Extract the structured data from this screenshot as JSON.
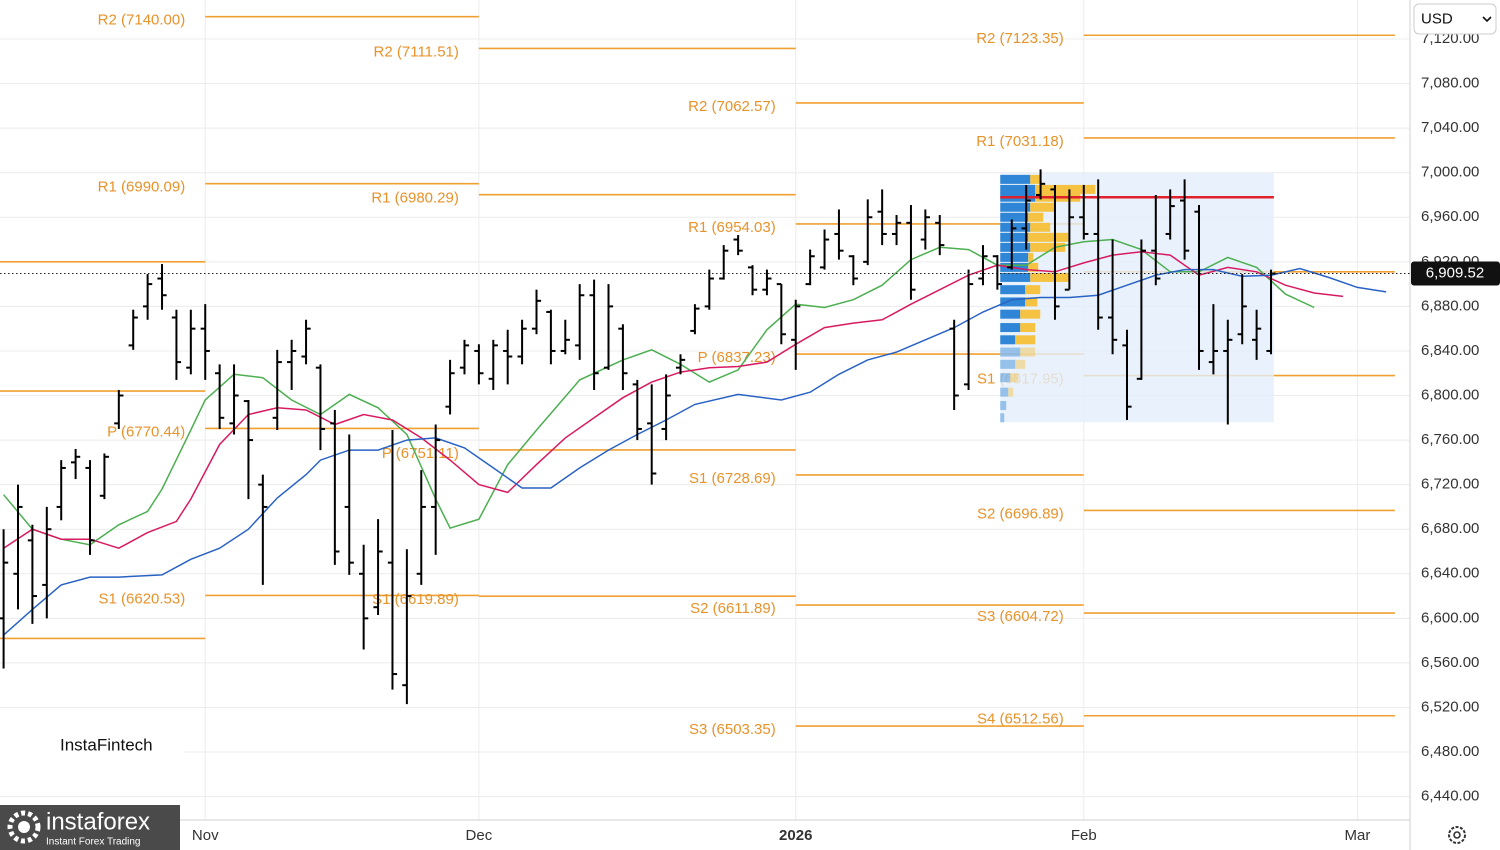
{
  "chart_data": {
    "type": "ohlc",
    "color": "#000000",
    "xlim": [
      -0.25,
      97.65
    ],
    "ylim": [
      6419,
      7155
    ],
    "grid": true,
    "xticks": [
      {
        "value": 14,
        "label": "Nov"
      },
      {
        "value": 33,
        "label": "Dec"
      },
      {
        "value": 55,
        "label": "2026"
      },
      {
        "value": 75,
        "label": "Feb"
      },
      {
        "value": 94,
        "label": "Mar"
      }
    ],
    "yticks": [
      {
        "value": 6440,
        "label": "6,440.00"
      },
      {
        "value": 6480,
        "label": "6,480.00"
      },
      {
        "value": 6520,
        "label": "6,520.00"
      },
      {
        "value": 6560,
        "label": "6,560.00"
      },
      {
        "value": 6600,
        "label": "6,600.00"
      },
      {
        "value": 6640,
        "label": "6,640.00"
      },
      {
        "value": 6680,
        "label": "6,680.00"
      },
      {
        "value": 6720,
        "label": "6,720.00"
      },
      {
        "value": 6760,
        "label": "6,760.00"
      },
      {
        "value": 6800,
        "label": "6,800.00"
      },
      {
        "value": 6840,
        "label": "6,840.00"
      },
      {
        "value": 6880,
        "label": "6,880.00"
      },
      {
        "value": 6920,
        "label": "6,920.00"
      },
      {
        "value": 6960,
        "label": "6,960.00"
      },
      {
        "value": 7000,
        "label": "7,000.00"
      },
      {
        "value": 7040,
        "label": "7,040.00"
      },
      {
        "value": 7080,
        "label": "7,080.00"
      },
      {
        "value": 7120,
        "label": "7,120.00"
      }
    ],
    "x": [
      0,
      1,
      2,
      3,
      4,
      5,
      6,
      7,
      8,
      9,
      10,
      11,
      12,
      13,
      14,
      15,
      16,
      17,
      18,
      19,
      20,
      21,
      22,
      23,
      24,
      25,
      26,
      27,
      28,
      29,
      30,
      31,
      32,
      33,
      34,
      35,
      36,
      37,
      38,
      39,
      40,
      41,
      42,
      43,
      44,
      45,
      46,
      47,
      48,
      49,
      50,
      51,
      52,
      53,
      54,
      55,
      56,
      57,
      58,
      59,
      60,
      61,
      62,
      63,
      64,
      65,
      66,
      67,
      68,
      69,
      70,
      71,
      72,
      73,
      74,
      75,
      76,
      77,
      78,
      79,
      80,
      81,
      82,
      83,
      84,
      85,
      86,
      87,
      88
    ],
    "open": [
      6600,
      6640,
      6670,
      6630,
      6700,
      6740,
      6735,
      6710,
      6775,
      6845,
      6880,
      6905,
      6870,
      6825,
      6860,
      6820,
      6775,
      6795,
      6720,
      6780,
      6830,
      6835,
      6825,
      6775,
      6700,
      6640,
      6610,
      6650,
      6540,
      6640,
      6700,
      6790,
      6825,
      6840,
      6815,
      6840,
      6835,
      6860,
      6875,
      6840,
      6845,
      6890,
      6825,
      6860,
      6810,
      6775,
      6770,
      6825,
      6858,
      6880,
      6905,
      6940,
      6915,
      6895,
      6900,
      6850,
      6900,
      6915,
      6945,
      6925,
      6920,
      6965,
      6945,
      6955,
      6940,
      6955,
      6860,
      6810,
      6905,
      6925,
      6915,
      6950,
      6980,
      6985,
      6895,
      6960,
      6945,
      6870,
      6845,
      6815,
      6930,
      6945,
      6975,
      6965,
      6830,
      6840,
      6855,
      6850,
      6840
    ],
    "high": [
      6680,
      6720,
      6684,
      6700,
      6742,
      6752,
      6742,
      6748,
      6805,
      6877,
      6909,
      6918,
      6877,
      6877,
      6882,
      6828,
      6828,
      6796,
      6729,
      6841,
      6850,
      6868,
      6828,
      6787,
      6765,
      6666,
      6689,
      6769,
      6662,
      6733,
      6774,
      6832,
      6850,
      6846,
      6850,
      6859,
      6868,
      6895,
      6877,
      6868,
      6900,
      6904,
      6900,
      6864,
      6814,
      6810,
      6819,
      6837,
      6882,
      6913,
      6935,
      6944,
      6917,
      6913,
      6900,
      6886,
      6931,
      6949,
      6967,
      6926,
      6976,
      6985,
      6962,
      6971,
      6967,
      6962,
      6868,
      6913,
      6935,
      6926,
      6958,
      6989,
      7003,
      6989,
      6985,
      6989,
      6994,
      6940,
      6859,
      6940,
      6980,
      6985,
      6994,
      6971,
      6882,
      6868,
      6909,
      6877,
      6913
    ],
    "low": [
      6555,
      6608,
      6595,
      6600,
      6688,
      6725,
      6657,
      6707,
      6770,
      6841,
      6868,
      6877,
      6814,
      6819,
      6814,
      6770,
      6765,
      6707,
      6630,
      6769,
      6805,
      6828,
      6751,
      6648,
      6639,
      6572,
      6603,
      6536,
      6523,
      6630,
      6657,
      6783,
      6819,
      6810,
      6805,
      6810,
      6828,
      6855,
      6828,
      6837,
      6832,
      6805,
      6823,
      6805,
      6760,
      6720,
      6760,
      6819,
      6855,
      6877,
      6904,
      6926,
      6890,
      6890,
      6846,
      6823,
      6899,
      6913,
      6922,
      6899,
      6917,
      6935,
      6935,
      6886,
      6931,
      6926,
      6787,
      6805,
      6899,
      6895,
      6913,
      6931,
      6976,
      6868,
      6895,
      6940,
      6859,
      6837,
      6778,
      6814,
      6899,
      6940,
      6922,
      6823,
      6819,
      6774,
      6846,
      6832,
      6837
    ],
    "close": [
      6650,
      6700,
      6620,
      6680,
      6735,
      6745,
      6670,
      6745,
      6800,
      6870,
      6900,
      6890,
      6830,
      6860,
      6840,
      6780,
      6800,
      6760,
      6700,
      6830,
      6840,
      6860,
      6770,
      6660,
      6650,
      6600,
      6660,
      6550,
      6620,
      6700,
      6760,
      6820,
      6845,
      6820,
      6845,
      6835,
      6860,
      6885,
      6840,
      6850,
      6890,
      6820,
      6880,
      6820,
      6770,
      6730,
      6800,
      6832,
      6878,
      6905,
      6930,
      6930,
      6895,
      6905,
      6855,
      6880,
      6925,
      6940,
      6930,
      6905,
      6960,
      6945,
      6955,
      6895,
      6960,
      6935,
      6800,
      6900,
      6925,
      6900,
      6950,
      6975,
      6990,
      6880,
      6960,
      6945,
      6870,
      6850,
      6790,
      6930,
      6905,
      6970,
      6930,
      6840,
      6840,
      6850,
      6880,
      6860,
      6909.52
    ],
    "lines": [
      {
        "color": "#4caf50",
        "x": [
          0,
          2,
          4,
          6,
          8,
          10,
          11,
          13,
          14,
          16,
          18,
          20,
          22,
          24,
          26,
          28,
          30,
          31,
          33,
          35,
          37,
          40,
          43,
          45,
          47,
          49,
          51,
          53,
          55,
          57,
          59,
          61,
          63,
          65,
          67,
          69,
          71,
          73,
          75,
          77,
          79,
          81,
          83,
          85,
          87,
          89,
          91
        ],
        "values": [
          6711,
          6680,
          6671,
          6666,
          6684,
          6696,
          6716,
          6769,
          6796,
          6819,
          6816,
          6796,
          6783,
          6801,
          6789,
          6765,
          6707,
          6681,
          6689,
          6738,
          6769,
          6814,
          6832,
          6841,
          6828,
          6812,
          6823,
          6859,
          6882,
          6879,
          6886,
          6899,
          6922,
          6933,
          6931,
          6917,
          6917,
          6933,
          6938,
          6940,
          6931,
          6911,
          6911,
          6924,
          6915,
          6891,
          6879
        ]
      },
      {
        "color": "#d81b60",
        "x": [
          0,
          2,
          4,
          6,
          8,
          10,
          12,
          13,
          15,
          17,
          19,
          21,
          23,
          25,
          27,
          29,
          31,
          33,
          35,
          37,
          39,
          41,
          43,
          45,
          47,
          49,
          51,
          53,
          55,
          57,
          59,
          61,
          63,
          65,
          67,
          69,
          71,
          73,
          75,
          77,
          79,
          81,
          83,
          85,
          87,
          89,
          91,
          93
        ],
        "values": [
          6663,
          6680,
          6671,
          6671,
          6663,
          6677,
          6687,
          6707,
          6756,
          6783,
          6789,
          6787,
          6774,
          6783,
          6778,
          6762,
          6742,
          6720,
          6713,
          6738,
          6762,
          6780,
          6798,
          6812,
          6821,
          6825,
          6826,
          6830,
          6846,
          6861,
          6865,
          6868,
          6882,
          6895,
          6908,
          6917,
          6913,
          6911,
          6919,
          6926,
          6929,
          6926,
          6908,
          6915,
          6911,
          6899,
          6892,
          6889
        ]
      },
      {
        "color": "#2962c4",
        "x": [
          0,
          2,
          4,
          6,
          8,
          11,
          13,
          15,
          17,
          19,
          21,
          22,
          24,
          26,
          28,
          30,
          32,
          34,
          36,
          38,
          40,
          42,
          44,
          46,
          48,
          51,
          54,
          56,
          58,
          60,
          62,
          64,
          66,
          68,
          70,
          72,
          74,
          76,
          78,
          80,
          82,
          84,
          86,
          88,
          90,
          92,
          94,
          96
        ],
        "values": [
          6585,
          6608,
          6630,
          6637,
          6637,
          6639,
          6653,
          6663,
          6680,
          6708,
          6729,
          6742,
          6751,
          6751,
          6760,
          6762,
          6753,
          6735,
          6717,
          6717,
          6735,
          6751,
          6765,
          6778,
          6792,
          6801,
          6796,
          6803,
          6819,
          6832,
          6839,
          6850,
          6861,
          6875,
          6886,
          6888,
          6888,
          6890,
          6899,
          6908,
          6913,
          6913,
          6907,
          6908,
          6914,
          6906,
          6897,
          6893
        ]
      }
    ],
    "pivot_color": "#f0a030",
    "pivots": [
      {
        "x": [
          -0.25,
          14
        ],
        "levels": [
          {
            "value": 6920,
            "label": null
          },
          {
            "value": 6804,
            "label": null
          },
          {
            "value": 6582,
            "label": null
          }
        ]
      },
      {
        "x": [
          14,
          33
        ],
        "levels": [
          {
            "value": 7140.0,
            "label": "R2 (7140.00)"
          },
          {
            "value": 6990.09,
            "label": "R1 (6990.09)"
          },
          {
            "value": 6770.44,
            "label": "P (6770.44)"
          },
          {
            "value": 6620.53,
            "label": "S1 (6620.53)"
          }
        ]
      },
      {
        "x": [
          33,
          55
        ],
        "levels": [
          {
            "value": 7111.51,
            "label": "R2 (7111.51)"
          },
          {
            "value": 6980.29,
            "label": "R1 (6980.29)"
          },
          {
            "value": 6751.11,
            "label": "P (6751.11)"
          },
          {
            "value": 6619.89,
            "label": "S1 (6619.89)"
          }
        ]
      },
      {
        "x": [
          55,
          75
        ],
        "levels": [
          {
            "value": 7062.57,
            "label": "R2 (7062.57)"
          },
          {
            "value": 6954.03,
            "label": "R1 (6954.03)"
          },
          {
            "value": 6837.23,
            "label": "P (6837.23)"
          },
          {
            "value": 6728.69,
            "label": "S1 (6728.69)"
          },
          {
            "value": 6611.89,
            "label": "S2 (6611.89)"
          },
          {
            "value": 6503.35,
            "label": "S3 (6503.35)"
          }
        ]
      },
      {
        "x": [
          75,
          96.6
        ],
        "levels": [
          {
            "value": 7123.35,
            "label": "R2 (7123.35)"
          },
          {
            "value": 7031.18,
            "label": "R1 (7031.18)"
          },
          {
            "value": 6911,
            "label": null
          },
          {
            "value": 6817.95,
            "label": "S1 (6817.95)"
          },
          {
            "value": 6696.89,
            "label": "S2 (6696.89)"
          },
          {
            "value": 6604.72,
            "label": "S3 (6604.72)"
          },
          {
            "value": 6512.56,
            "label": "S4 (6512.56)"
          }
        ]
      }
    ],
    "volume_profile": {
      "x": [
        69.2,
        88.2
      ],
      "range": [
        6776,
        7000
      ],
      "poc": 6978,
      "poc_color": "#e0202a",
      "blue_color": "#2f86d6",
      "yellow_color": "#f5c242",
      "prices": [
        6994,
        6985,
        6978,
        6969,
        6960,
        6951,
        6942,
        6933,
        6924,
        6915,
        6906,
        6895,
        6884,
        6873,
        6861,
        6850,
        6839,
        6828,
        6816,
        6803,
        6791,
        6780
      ],
      "blue": [
        30,
        35,
        35,
        30,
        28,
        30,
        28,
        30,
        28,
        28,
        30,
        25,
        25,
        20,
        20,
        15,
        20,
        15,
        10,
        8,
        6,
        4
      ],
      "yellow": [
        10,
        60,
        45,
        25,
        15,
        20,
        40,
        35,
        5,
        10,
        40,
        15,
        12,
        20,
        15,
        20,
        15,
        10,
        8,
        5,
        0,
        0
      ]
    },
    "last_price": {
      "value": 6909.52,
      "label": "6,909.52"
    }
  },
  "toolbar": {
    "currency": "USD"
  },
  "watermark": {
    "box": "InstaFintech",
    "brand": "instaforex",
    "tagline": "Instant Forex Trading"
  }
}
